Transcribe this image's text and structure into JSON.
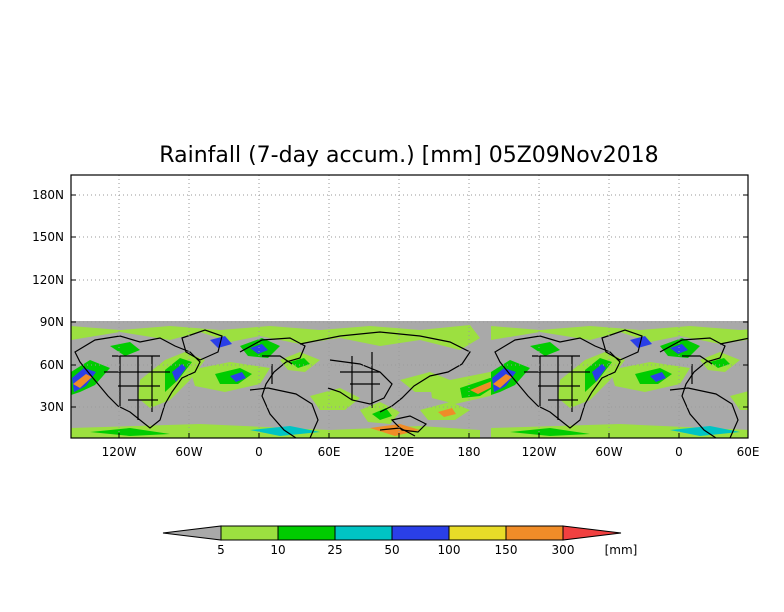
{
  "title": "Rainfall (7-day accum.) [mm] 05Z09Nov2018",
  "map": {
    "y_ticks": [
      "180N",
      "150N",
      "120N",
      "90N",
      "60N",
      "30N"
    ],
    "x_ticks": [
      "120W",
      "60W",
      "0",
      "60E",
      "120E",
      "180",
      "120W",
      "60W",
      "0",
      "60E"
    ],
    "data_extent_top": "90N",
    "no_data_color": "#a9a9a9",
    "grid": "dotted"
  },
  "colorbar": {
    "unit": "[mm]",
    "boundaries": [
      "5",
      "10",
      "25",
      "50",
      "100",
      "150",
      "300"
    ],
    "colors": [
      "#a9a9a9",
      "#9ce040",
      "#00cc00",
      "#00c4c4",
      "#2a3fe8",
      "#e8dc28",
      "#f08c28",
      "#f04040"
    ]
  }
}
